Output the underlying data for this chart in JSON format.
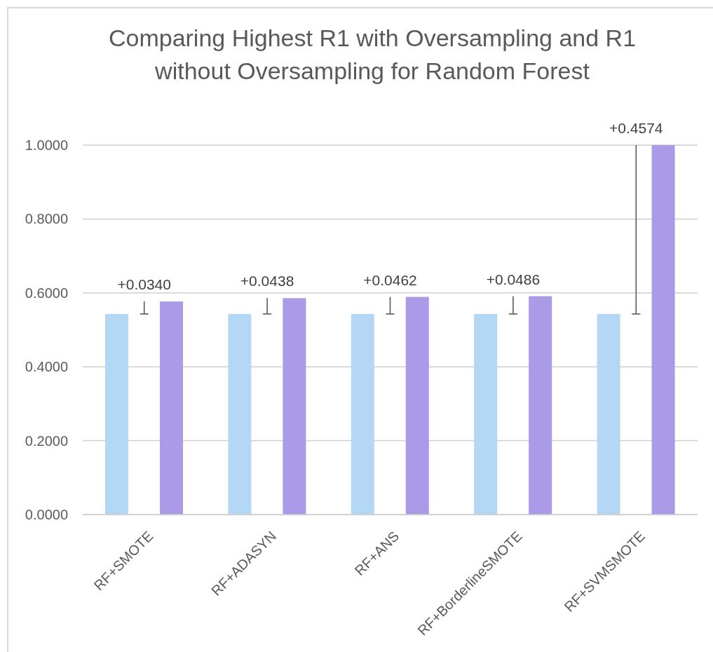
{
  "chart_data": {
    "type": "bar",
    "title": "Comparing Highest R1 with Oversampling and R1 without Oversampling for Random Forest",
    "categories": [
      "RF+SMOTE",
      "RF+ADASYN",
      "RF+ANS",
      "RF+BorderlineSMOTE",
      "RF+SVMSMOTE"
    ],
    "series": [
      {
        "color": "#b4d7f6",
        "values": [
          0.543,
          0.543,
          0.543,
          0.543,
          0.543
        ]
      },
      {
        "color": "#ab9ae8",
        "values": [
          0.577,
          0.586,
          0.589,
          0.591,
          1.0
        ]
      }
    ],
    "ylim": [
      0,
      1
    ],
    "yticks": [
      {
        "value": 0,
        "label": "0.0000"
      },
      {
        "value": 0.2,
        "label": "0.2000"
      },
      {
        "value": 0.4,
        "label": "0.4000"
      },
      {
        "value": 0.6,
        "label": "0.6000"
      },
      {
        "value": 0.8,
        "label": "0.8000"
      },
      {
        "value": 1,
        "label": "1.0000"
      }
    ],
    "grid": "y",
    "annotations": [
      "+0.0340",
      "+0.0438",
      "+0.0462",
      "+0.0486",
      "+0.4574"
    ]
  }
}
